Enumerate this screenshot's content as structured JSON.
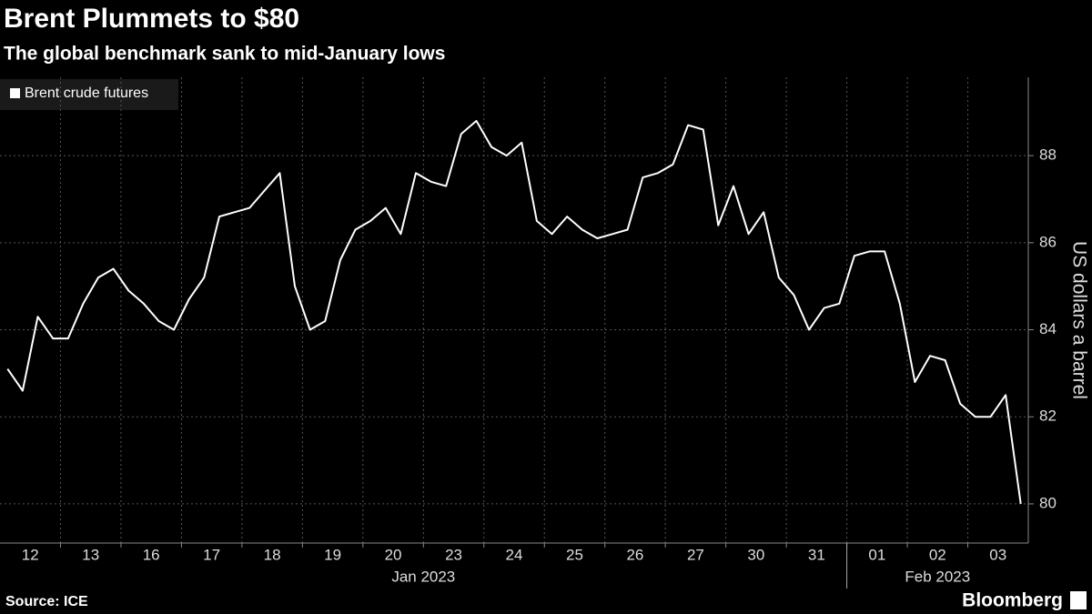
{
  "chart_data": {
    "type": "line",
    "title": "Brent Plummets to $80",
    "subtitle": "The global benchmark sank to mid-January lows",
    "y_label": "US dollars a barrel",
    "categories": [
      null,
      "12",
      null,
      null,
      null,
      "13",
      null,
      null,
      null,
      "16",
      null,
      null,
      null,
      "17",
      null,
      null,
      null,
      "18",
      null,
      null,
      null,
      "19",
      null,
      null,
      null,
      "20",
      null,
      null,
      null,
      "23",
      null,
      null,
      null,
      "24",
      null,
      null,
      null,
      "25",
      null,
      null,
      null,
      "26",
      null,
      null,
      null,
      "27",
      null,
      null,
      null,
      "30",
      null,
      null,
      null,
      "31",
      null,
      null,
      null,
      "01",
      null,
      null,
      null,
      "02",
      null,
      null,
      null,
      "03",
      null,
      null
    ],
    "month_labels": [
      "Jan 2023",
      "Feb 2023"
    ],
    "series": [
      {
        "name": "Brent crude futures",
        "color": "#ffffff",
        "values": [
          83.1,
          82.6,
          84.3,
          83.8,
          83.8,
          84.6,
          85.2,
          85.4,
          84.9,
          84.6,
          84.2,
          84.0,
          84.7,
          85.2,
          86.6,
          86.7,
          86.8,
          87.2,
          87.6,
          85.0,
          84.0,
          84.2,
          85.6,
          86.3,
          86.5,
          86.8,
          86.2,
          87.6,
          87.4,
          87.3,
          88.5,
          88.8,
          88.2,
          88.0,
          88.3,
          86.5,
          86.2,
          86.6,
          86.3,
          86.1,
          86.2,
          86.3,
          87.5,
          87.6,
          87.8,
          88.7,
          88.6,
          86.4,
          87.3,
          86.2,
          86.7,
          85.2,
          84.8,
          84.0,
          84.5,
          84.6,
          85.7,
          85.8,
          85.8,
          84.6,
          82.8,
          83.4,
          83.3,
          82.3,
          82.0,
          82.0,
          82.5,
          80.0
        ]
      }
    ],
    "ylim": [
      79.1,
      89.8
    ],
    "yticks": [
      80,
      82,
      84,
      86,
      88
    ],
    "grid": true
  },
  "source": "Source: ICE",
  "brand": "Bloomberg"
}
